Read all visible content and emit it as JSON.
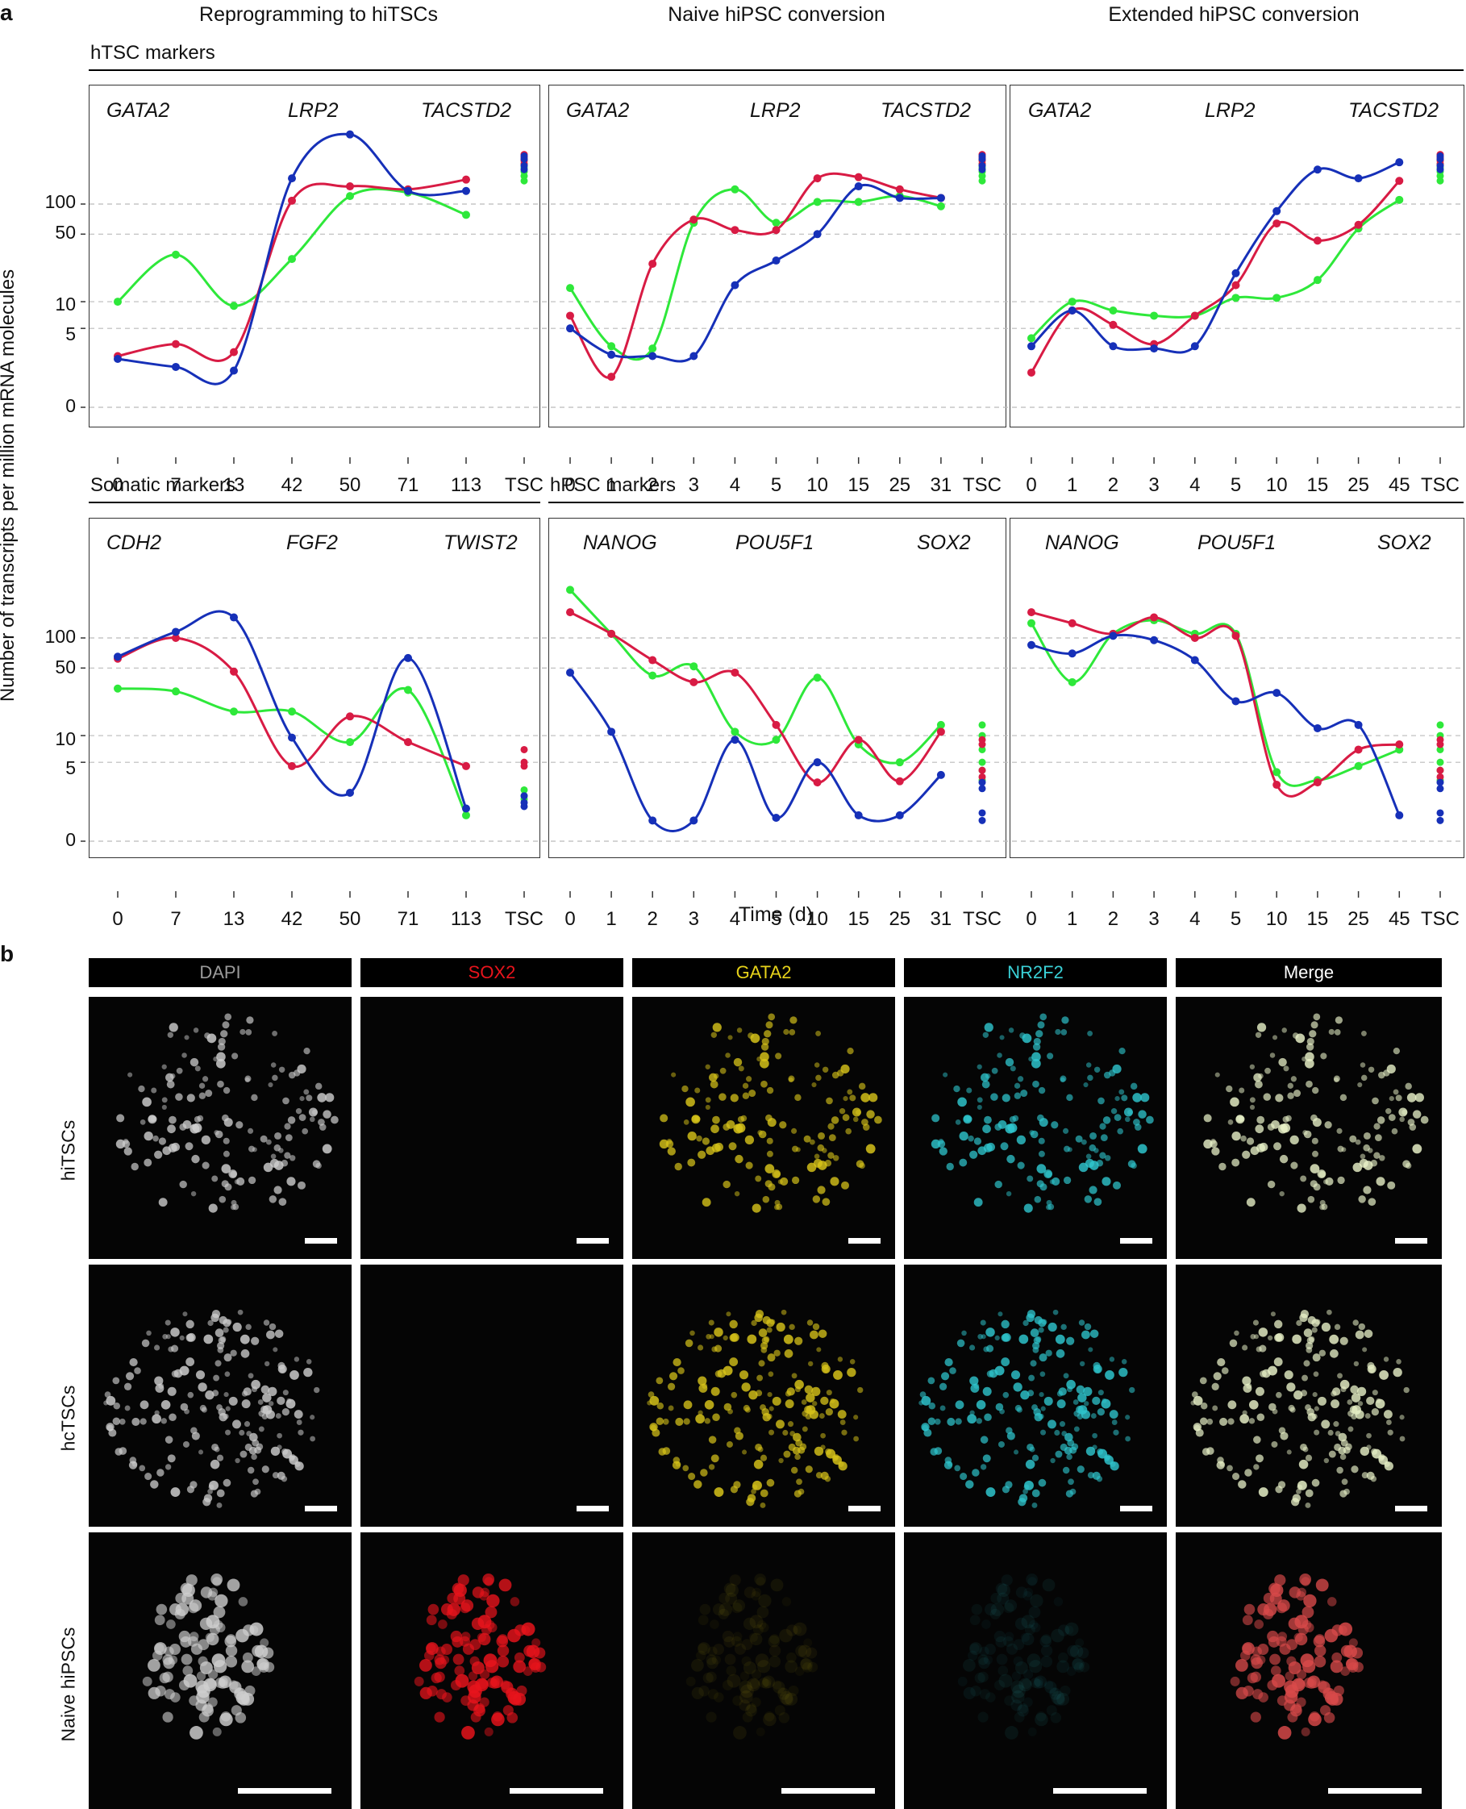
{
  "panel_a": {
    "letter": "a",
    "column_titles": [
      "Reprogramming to hiTSCs",
      "Naive hiPSC conversion",
      "Extended hiPSC conversion"
    ],
    "section_labels": {
      "top": "hTSC markers",
      "somatic": "Somatic markers",
      "hpsc": "hPSC markers"
    },
    "y_axis_label": "Number of transcripts per million mRNA molecules",
    "x_axis_label": "Time (d)",
    "y_ticks": [
      "0",
      "5",
      "10",
      "50",
      "100"
    ],
    "colors": {
      "green": "#2ee83a",
      "red": "#d81b44",
      "blue": "#1630b8"
    }
  },
  "chart_data": [
    {
      "type": "line",
      "id": "htsc-reprogramming",
      "categories": [
        "0",
        "7",
        "13",
        "42",
        "50",
        "71",
        "113",
        "TSC"
      ],
      "series": [
        {
          "name": "GATA2",
          "color": "green",
          "values": [
            10,
            31,
            9,
            28,
            120,
            130,
            78,
            null
          ],
          "tsc": [
            250,
            230,
            210,
            190,
            170
          ]
        },
        {
          "name": "LRP2",
          "color": "red",
          "values": [
            2.2,
            3.2,
            2.5,
            108,
            150,
            140,
            175,
            null
          ],
          "tsc": [
            310,
            290,
            270,
            250
          ]
        },
        {
          "name": "TACSTD2",
          "color": "blue",
          "values": [
            2.0,
            1.5,
            1.3,
            180,
            490,
            135,
            135,
            null
          ],
          "tsc": [
            300,
            280,
            240,
            220
          ]
        }
      ]
    },
    {
      "type": "line",
      "id": "htsc-naive",
      "categories": [
        "0",
        "1",
        "2",
        "3",
        "4",
        "5",
        "10",
        "15",
        "25",
        "31",
        "TSC"
      ],
      "series": [
        {
          "name": "GATA2",
          "color": "green",
          "values": [
            14,
            3,
            2.8,
            65,
            140,
            65,
            105,
            105,
            120,
            95,
            null
          ],
          "tsc": [
            250,
            230,
            210,
            190,
            170
          ]
        },
        {
          "name": "LRP2",
          "color": "red",
          "values": [
            7,
            1,
            25,
            70,
            55,
            55,
            180,
            185,
            140,
            115,
            null
          ],
          "tsc": [
            310,
            290,
            270,
            250
          ]
        },
        {
          "name": "TACSTD2",
          "color": "blue",
          "values": [
            5,
            2.3,
            2.2,
            2.2,
            15,
            27,
            50,
            150,
            115,
            115,
            null
          ],
          "tsc": [
            300,
            280,
            240,
            220
          ]
        }
      ]
    },
    {
      "type": "line",
      "id": "htsc-extended",
      "categories": [
        "0",
        "1",
        "2",
        "3",
        "4",
        "5",
        "10",
        "15",
        "25",
        "45",
        "TSC"
      ],
      "series": [
        {
          "name": "GATA2",
          "color": "green",
          "values": [
            3.8,
            10,
            8,
            7,
            7,
            11,
            11,
            17,
            57,
            110,
            null
          ],
          "tsc": [
            250,
            230,
            210,
            190,
            170
          ]
        },
        {
          "name": "LRP2",
          "color": "red",
          "values": [
            1.2,
            8,
            5.5,
            3.2,
            7,
            15,
            64,
            43,
            62,
            170,
            null
          ],
          "tsc": [
            310,
            290,
            270,
            250
          ]
        },
        {
          "name": "TACSTD2",
          "color": "blue",
          "values": [
            3,
            8,
            3,
            2.8,
            3,
            20,
            85,
            220,
            180,
            260,
            null
          ],
          "tsc": [
            300,
            280,
            240,
            220
          ]
        }
      ]
    },
    {
      "type": "line",
      "id": "somatic-reprogramming",
      "categories": [
        "0",
        "7",
        "13",
        "42",
        "50",
        "71",
        "113",
        "TSC"
      ],
      "series": [
        {
          "name": "CDH2",
          "color": "green",
          "values": [
            31,
            29,
            18,
            18,
            8.5,
            30,
            0.8,
            null
          ],
          "tsc": [
            2.2,
            1.8,
            1.6
          ]
        },
        {
          "name": "FGF2",
          "color": "red",
          "values": [
            62,
            100,
            46,
            4.5,
            16,
            8.5,
            4.5,
            null
          ],
          "tsc": [
            7,
            5,
            4.5
          ]
        },
        {
          "name": "TWIST2",
          "color": "blue",
          "values": [
            65,
            115,
            160,
            9.5,
            2,
            63,
            1.1,
            null
          ],
          "tsc": [
            1.8,
            1.4,
            1.2
          ]
        }
      ]
    },
    {
      "type": "line",
      "id": "hpsc-naive",
      "categories": [
        "0",
        "1",
        "2",
        "3",
        "4",
        "5",
        "10",
        "15",
        "25",
        "31",
        "TSC"
      ],
      "series": [
        {
          "name": "NANOG",
          "color": "green",
          "values": [
            300,
            110,
            42,
            52,
            11,
            9,
            40,
            8,
            5,
            13,
            null
          ],
          "tsc": [
            13,
            10,
            7,
            5,
            4,
            3
          ]
        },
        {
          "name": "POU5F1",
          "color": "red",
          "values": [
            180,
            110,
            60,
            36,
            45,
            13,
            2.8,
            9,
            2.9,
            11,
            null
          ],
          "tsc": [
            9,
            8,
            4,
            3.3
          ]
        },
        {
          "name": "SOX2",
          "color": "blue",
          "values": [
            45,
            11,
            0.6,
            0.6,
            9,
            0.7,
            5,
            0.8,
            0.8,
            3.5,
            null
          ],
          "tsc": [
            2.8,
            2.3,
            0.9,
            0.6
          ]
        }
      ]
    },
    {
      "type": "line",
      "id": "hpsc-extended",
      "categories": [
        "0",
        "1",
        "2",
        "3",
        "4",
        "5",
        "10",
        "15",
        "25",
        "45",
        "TSC"
      ],
      "series": [
        {
          "name": "NANOG",
          "color": "green",
          "values": [
            140,
            36,
            110,
            150,
            110,
            110,
            3.8,
            3,
            4.5,
            7,
            null
          ],
          "tsc": [
            13,
            10,
            7,
            5,
            4,
            3
          ]
        },
        {
          "name": "POU5F1",
          "color": "red",
          "values": [
            180,
            140,
            110,
            160,
            100,
            105,
            2.6,
            2.8,
            7,
            8,
            null
          ],
          "tsc": [
            9,
            8,
            4,
            3.3
          ]
        },
        {
          "name": "SOX2",
          "color": "blue",
          "values": [
            85,
            70,
            105,
            95,
            60,
            23,
            28,
            12,
            13,
            0.8,
            null
          ],
          "tsc": [
            2.8,
            2.3,
            0.9,
            0.6
          ]
        }
      ]
    }
  ],
  "panel_b": {
    "letter": "b",
    "channels": [
      {
        "label": "DAPI",
        "color": "#9a9a9a"
      },
      {
        "label": "SOX2",
        "color": "#e8141c"
      },
      {
        "label": "GATA2",
        "color": "#e6d21a"
      },
      {
        "label": "NR2F2",
        "color": "#3ad0d6"
      },
      {
        "label": "Merge",
        "color": "#ffffff"
      }
    ],
    "rows": [
      "hiTSCs",
      "hcTSCs",
      "Naive hiPSCs"
    ]
  }
}
